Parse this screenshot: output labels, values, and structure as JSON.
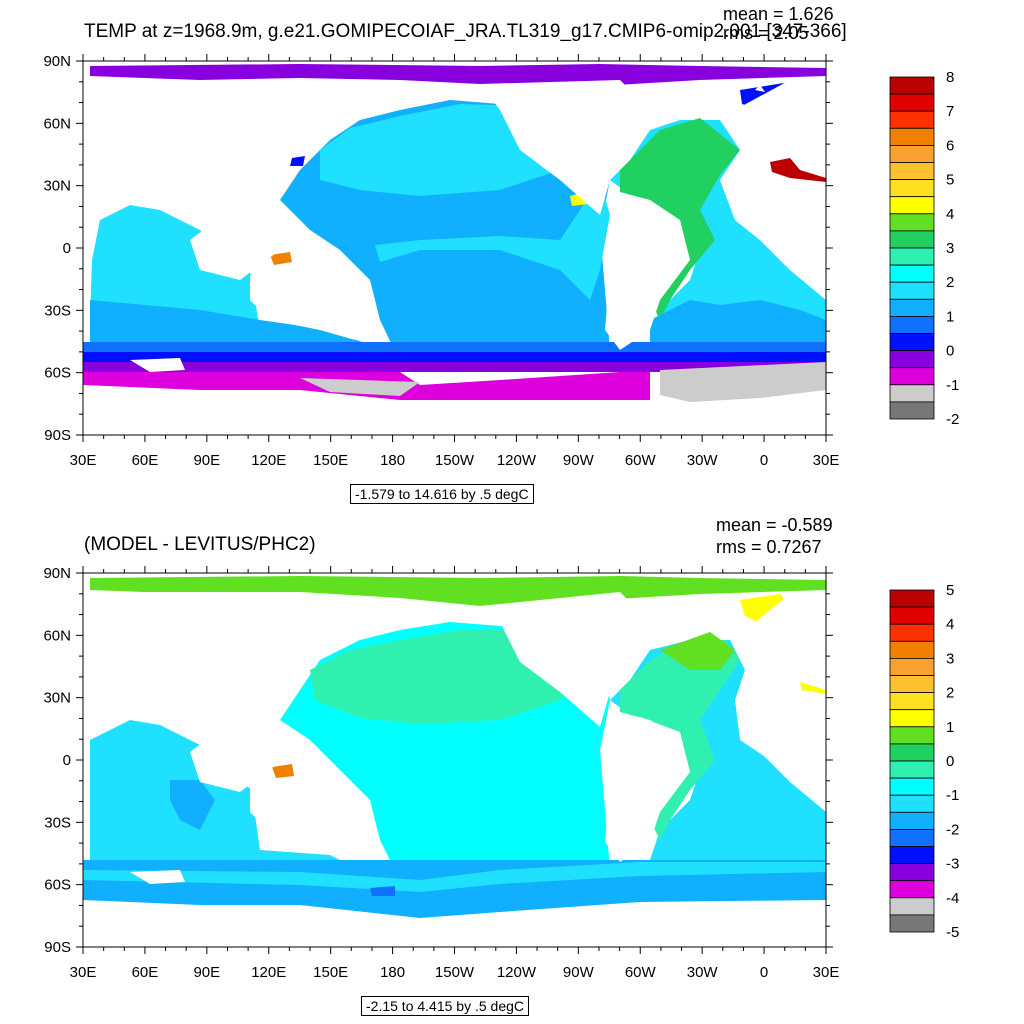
{
  "panels": [
    {
      "title": "TEMP at z=1968.9m, g.e21.GOMIPECOIAF_JRA.TL319_g17.CMIP6-omip2.001 [347-366]",
      "mean": "mean = 1.626",
      "rms": "rms = 2.05",
      "range": "-1.579 to 14.616 by .5 degC",
      "colorbar_labels": [
        "8",
        "7",
        "6",
        "5",
        "4",
        "3",
        "2",
        "1",
        "0",
        "-1",
        "-2"
      ],
      "colorbar_colors": [
        "#bb0000",
        "#e00000",
        "#ff3000",
        "#f08000",
        "#f8a030",
        "#fcc030",
        "#ffe020",
        "#ffff00",
        "#60e020",
        "#20d060",
        "#30f0b0",
        "#00ffff",
        "#20e0ff",
        "#10b0ff",
        "#1070ff",
        "#0010ff",
        "#8800dd",
        "#dd00dd",
        "#cccccc",
        "#777777"
      ]
    },
    {
      "title": "(MODEL - LEVITUS/PHC2)",
      "mean": "mean = -0.589",
      "rms": "rms = 0.7267",
      "range": "-2.15 to 4.415 by .5 degC",
      "colorbar_labels": [
        "5",
        "4",
        "3",
        "2",
        "1",
        "0",
        "-1",
        "-2",
        "-3",
        "-4",
        "-5"
      ],
      "colorbar_colors": [
        "#bb0000",
        "#e00000",
        "#ff3000",
        "#f08000",
        "#f8a030",
        "#fcc030",
        "#ffe020",
        "#ffff00",
        "#60e020",
        "#20d060",
        "#30f0b0",
        "#00ffff",
        "#20e0ff",
        "#10b0ff",
        "#1070ff",
        "#0010ff",
        "#8800dd",
        "#dd00dd",
        "#cccccc",
        "#777777"
      ]
    }
  ],
  "lon_labels": [
    "30E",
    "60E",
    "90E",
    "120E",
    "150E",
    "180",
    "150W",
    "120W",
    "90W",
    "60W",
    "30W",
    "0",
    "30E"
  ],
  "lat_labels": [
    "90N",
    "60N",
    "30N",
    "0",
    "30S",
    "60S",
    "90S"
  ]
}
